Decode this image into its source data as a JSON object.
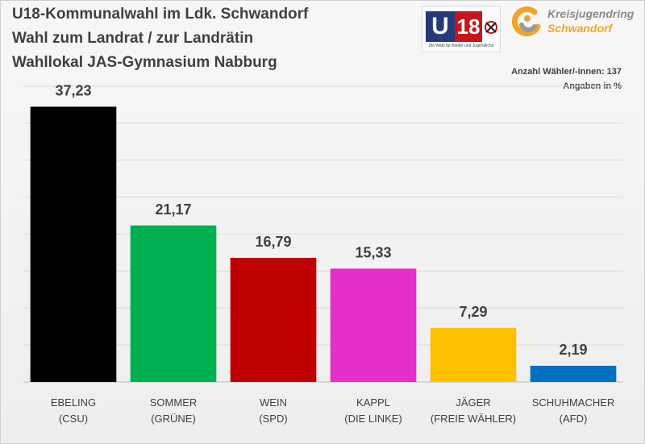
{
  "header": {
    "title_line1": "U18-Kommunalwahl im Ldk. Schwandorf",
    "title_line2": "Wahl zum Landrat / zur Landrätin",
    "title_line3": "Wahllokal JAS-Gymnasium Nabburg",
    "voters_note": "Anzahl Wähler/-innen: 137",
    "unit_note": "Angaben in %"
  },
  "logos": {
    "u18_letter": "U",
    "u18_number": "18",
    "u18_tagline": "Die Wahl für Kinder und Jugendliche",
    "kjr_line1": "Kreisjugendring",
    "kjr_line2": "Schwandorf"
  },
  "chart_data": {
    "type": "bar",
    "categories": [
      [
        "EBELING",
        "(CSU)"
      ],
      [
        "SOMMER",
        "(GRÜNE)"
      ],
      [
        "WEIN",
        "(SPD)"
      ],
      [
        "KAPPL",
        "(DIE LINKE)"
      ],
      [
        "JÄGER",
        "(FREIE WÄHLER)"
      ],
      [
        "SCHUHMACHER",
        "(AFD)"
      ]
    ],
    "values": [
      37.23,
      21.17,
      16.79,
      15.33,
      7.29,
      2.19
    ],
    "value_labels": [
      "37,23",
      "21,17",
      "16,79",
      "15,33",
      "7,29",
      "2,19"
    ],
    "colors": [
      "#000000",
      "#00b050",
      "#c00000",
      "#e62ec8",
      "#ffc000",
      "#0070c0"
    ],
    "ylim": [
      0,
      40
    ],
    "grid": true,
    "legend": "none"
  }
}
